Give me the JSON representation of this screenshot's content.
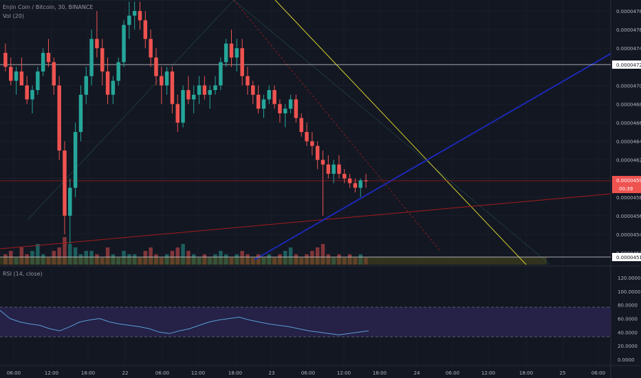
{
  "chart": {
    "legend_main": "Enjin Coin / Bitcoin, 30, BINANCE",
    "legend_vol": "Vol (20)",
    "legend_rsi": "RSI (14, close)"
  },
  "colors": {
    "bg": "#131722",
    "up": "#26a69a",
    "down": "#ef5350",
    "grid": "#1e2230",
    "rsi_line": "#5aa0d6",
    "rsi_band": "#2a2451",
    "trend_yellow": "#d6d22b",
    "trend_blue": "#1c29b5",
    "trend_red": "#a51c1c"
  },
  "chart_data": [
    {
      "type": "candlestick",
      "title": "Enjin Coin / Bitcoin, 30, BINANCE",
      "ylim": [
        4.5e-05,
        4.8e-05
      ],
      "y_ticks": [
        "0.00004780",
        "0.00004760",
        "0.00004740",
        "0.00004720",
        "0.00004700",
        "0.00004680",
        "0.00004660",
        "0.00004640",
        "0.00004620",
        "0.00004600",
        "0.00004580",
        "0.00004560",
        "0.00004540",
        "0.00004520"
      ],
      "x_ticks": [
        "06:00",
        "12:00",
        "18:00",
        "22",
        "06:00",
        "12:00",
        "18:00",
        "23",
        "06:00",
        "12:00",
        "18:00",
        "24",
        "06:00",
        "12:00",
        "18:00",
        "25",
        "06:00"
      ],
      "horizontal_lines": [
        {
          "label": "0.00004722",
          "value": 4.722e-05
        },
        {
          "label": "0.00004597",
          "value": 4.597e-05
        },
        {
          "label": "0.00004515",
          "value": 4.515e-05
        }
      ],
      "current_price": {
        "label": "0.00004597",
        "countdown": "00:39"
      },
      "candles": [
        [
          4.735,
          4.745,
          4.715,
          4.72
        ],
        [
          4.72,
          4.73,
          4.7,
          4.705
        ],
        [
          4.705,
          4.72,
          4.69,
          4.715
        ],
        [
          4.715,
          4.73,
          4.7,
          4.7
        ],
        [
          4.7,
          4.71,
          4.68,
          4.685
        ],
        [
          4.685,
          4.7,
          4.67,
          4.695
        ],
        [
          4.695,
          4.72,
          4.69,
          4.715
        ],
        [
          4.715,
          4.74,
          4.71,
          4.735
        ],
        [
          4.735,
          4.75,
          4.72,
          4.725
        ],
        [
          4.725,
          4.73,
          4.69,
          4.7
        ],
        [
          4.7,
          4.71,
          4.62,
          4.63
        ],
        [
          4.63,
          4.64,
          4.54,
          4.56
        ],
        [
          4.56,
          4.6,
          4.53,
          4.59
        ],
        [
          4.59,
          4.66,
          4.58,
          4.65
        ],
        [
          4.65,
          4.7,
          4.64,
          4.69
        ],
        [
          4.69,
          4.72,
          4.68,
          4.71
        ],
        [
          4.71,
          4.76,
          4.7,
          4.75
        ],
        [
          4.75,
          4.78,
          4.73,
          4.74
        ],
        [
          4.74,
          4.75,
          4.7,
          4.715
        ],
        [
          4.715,
          4.73,
          4.68,
          4.69
        ],
        [
          4.69,
          4.71,
          4.68,
          4.705
        ],
        [
          4.705,
          4.73,
          4.7,
          4.725
        ],
        [
          4.725,
          4.77,
          4.72,
          4.765
        ],
        [
          4.765,
          4.79,
          4.75,
          4.775
        ],
        [
          4.775,
          4.79,
          4.76,
          4.78
        ],
        [
          4.78,
          4.79,
          4.76,
          4.77
        ],
        [
          4.77,
          4.78,
          4.74,
          4.75
        ],
        [
          4.75,
          4.76,
          4.72,
          4.73
        ],
        [
          4.73,
          4.74,
          4.7,
          4.71
        ],
        [
          4.71,
          4.72,
          4.68,
          4.7
        ],
        [
          4.7,
          4.72,
          4.69,
          4.715
        ],
        [
          4.715,
          4.72,
          4.67,
          4.68
        ],
        [
          4.68,
          4.69,
          4.65,
          4.66
        ],
        [
          4.66,
          4.7,
          4.655,
          4.695
        ],
        [
          4.695,
          4.71,
          4.68,
          4.685
        ],
        [
          4.685,
          4.7,
          4.67,
          4.69
        ],
        [
          4.69,
          4.71,
          4.68,
          4.7
        ],
        [
          4.7,
          4.71,
          4.685,
          4.69
        ],
        [
          4.69,
          4.7,
          4.675,
          4.695
        ],
        [
          4.695,
          4.71,
          4.69,
          4.7
        ],
        [
          4.7,
          4.73,
          4.695,
          4.725
        ],
        [
          4.725,
          4.75,
          4.72,
          4.745
        ],
        [
          4.745,
          4.76,
          4.72,
          4.73
        ],
        [
          4.73,
          4.75,
          4.715,
          4.74
        ],
        [
          4.74,
          4.75,
          4.7,
          4.71
        ],
        [
          4.71,
          4.72,
          4.69,
          4.7
        ],
        [
          4.7,
          4.705,
          4.68,
          4.69
        ],
        [
          4.69,
          4.7,
          4.67,
          4.675
        ],
        [
          4.675,
          4.69,
          4.665,
          4.685
        ],
        [
          4.685,
          4.7,
          4.68,
          4.695
        ],
        [
          4.695,
          4.7,
          4.675,
          4.68
        ],
        [
          4.68,
          4.685,
          4.66,
          4.67
        ],
        [
          4.67,
          4.68,
          4.655,
          4.675
        ],
        [
          4.675,
          4.69,
          4.67,
          4.685
        ],
        [
          4.685,
          4.69,
          4.66,
          4.665
        ],
        [
          4.665,
          4.67,
          4.645,
          4.65
        ],
        [
          4.65,
          4.66,
          4.635,
          4.64
        ],
        [
          4.64,
          4.65,
          4.625,
          4.635
        ],
        [
          4.635,
          4.64,
          4.61,
          4.62
        ],
        [
          4.62,
          4.63,
          4.56,
          4.615
        ],
        [
          4.615,
          4.625,
          4.6,
          4.605
        ],
        [
          4.605,
          4.62,
          4.595,
          4.615
        ],
        [
          4.615,
          4.625,
          4.6,
          4.605
        ],
        [
          4.605,
          4.61,
          4.595,
          4.6
        ],
        [
          4.6,
          4.605,
          4.59,
          4.595
        ],
        [
          4.595,
          4.6,
          4.585,
          4.59
        ],
        [
          4.59,
          4.6,
          4.58,
          4.598
        ],
        [
          4.598,
          4.605,
          4.59,
          4.597
        ]
      ],
      "volume": [
        3,
        4,
        2,
        5,
        3,
        4,
        6,
        3,
        2,
        4,
        5,
        8,
        6,
        5,
        3,
        4,
        4,
        3,
        2,
        5,
        3,
        2,
        4,
        3,
        3,
        2,
        4,
        5,
        3,
        2,
        3,
        4,
        5,
        6,
        4,
        3,
        2,
        3,
        2,
        3,
        4,
        3,
        2,
        3,
        4,
        3,
        2,
        3,
        2,
        3,
        2,
        3,
        4,
        5,
        3,
        2,
        3,
        4,
        5,
        6,
        3,
        2,
        3,
        2,
        3,
        2,
        3,
        2
      ]
    },
    {
      "type": "line",
      "title": "RSI (14, close)",
      "ylim": [
        0,
        120
      ],
      "y_ticks": [
        "120.0000",
        "100.0000",
        "80.0000",
        "60.0000",
        "40.0000",
        "20.0000",
        "0.0000"
      ],
      "bands": [
        70,
        30
      ],
      "values": [
        72,
        60,
        55,
        52,
        50,
        45,
        42,
        48,
        55,
        58,
        60,
        55,
        52,
        50,
        48,
        45,
        40,
        38,
        42,
        45,
        50,
        55,
        58,
        60,
        62,
        58,
        55,
        52,
        50,
        48,
        45,
        42,
        40,
        38,
        36,
        38,
        40,
        42
      ]
    }
  ]
}
